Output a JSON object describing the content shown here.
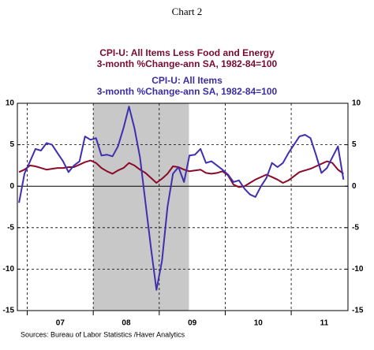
{
  "chart_data": {
    "type": "line",
    "title": "Chart 2",
    "legend_lines": [
      {
        "text": "CPI-U: All Items Less Food and Energy",
        "color": "#7a0a2e"
      },
      {
        "text": "3-month %Change-ann    SA, 1982-84=100",
        "color": "#7a0a2e"
      },
      {
        "text": "CPI-U: All Items",
        "color": "#3a2ea0"
      },
      {
        "text": "3-month %Change-ann    SA, 1982-84=100",
        "color": "#3a2ea0"
      }
    ],
    "source": "Sources:  Bureau of Labor Statistics /Haver Analytics",
    "x": [
      2006.875,
      2006.958,
      2007.042,
      2007.125,
      2007.208,
      2007.292,
      2007.375,
      2007.458,
      2007.542,
      2007.625,
      2007.708,
      2007.792,
      2007.875,
      2007.958,
      2008.042,
      2008.125,
      2008.208,
      2008.292,
      2008.375,
      2008.458,
      2008.542,
      2008.625,
      2008.708,
      2008.792,
      2008.875,
      2008.958,
      2009.042,
      2009.125,
      2009.208,
      2009.292,
      2009.375,
      2009.458,
      2009.542,
      2009.625,
      2009.708,
      2009.792,
      2009.875,
      2009.958,
      2010.042,
      2010.125,
      2010.208,
      2010.292,
      2010.375,
      2010.458,
      2010.542,
      2010.625,
      2010.708,
      2010.792,
      2010.875,
      2010.958,
      2011.042,
      2011.125,
      2011.208,
      2011.292,
      2011.375,
      2011.458,
      2011.542,
      2011.625,
      2011.708,
      2011.792
    ],
    "series": [
      {
        "name": "CPI-U: All Items Less Food and Energy",
        "color": "#8b0a2a",
        "values": [
          1.7,
          2.0,
          2.5,
          2.4,
          2.2,
          2.0,
          2.1,
          2.2,
          2.2,
          2.3,
          2.3,
          2.6,
          2.9,
          3.1,
          2.8,
          2.2,
          1.8,
          1.5,
          1.9,
          2.2,
          2.8,
          2.5,
          2.0,
          1.6,
          1.0,
          0.4,
          0.9,
          1.5,
          2.4,
          2.3,
          2.0,
          1.8,
          1.9,
          2.0,
          1.6,
          1.5,
          1.6,
          1.8,
          1.3,
          0.2,
          -0.1,
          0.0,
          0.4,
          0.8,
          1.1,
          1.4,
          1.1,
          0.8,
          0.4,
          0.7,
          1.2,
          1.7,
          1.9,
          2.1,
          2.4,
          2.7,
          3.0,
          2.8,
          2.0,
          1.5
        ]
      },
      {
        "name": "CPI-U: All Items",
        "color": "#3f2fb0",
        "values": [
          -2.0,
          1.5,
          3.0,
          4.5,
          4.3,
          5.2,
          5.0,
          4.0,
          3.0,
          1.7,
          2.5,
          3.0,
          6.0,
          5.6,
          5.8,
          3.7,
          3.8,
          3.6,
          4.8,
          7.0,
          9.6,
          7.0,
          3.5,
          -2.0,
          -7.5,
          -12.5,
          -9.0,
          -2.5,
          1.5,
          2.3,
          0.5,
          3.7,
          3.8,
          4.5,
          2.8,
          3.0,
          2.5,
          2.0,
          1.4,
          0.5,
          0.7,
          -0.3,
          -1.0,
          -1.3,
          0.0,
          1.0,
          2.8,
          2.3,
          2.8,
          4.0,
          5.0,
          6.0,
          6.2,
          5.8,
          3.8,
          1.6,
          2.2,
          3.5,
          4.8,
          0.8
        ]
      }
    ],
    "xlim": [
      2006.85,
      2011.86
    ],
    "xticks": [
      {
        "value": 2007.5,
        "label": "07"
      },
      {
        "value": 2008.5,
        "label": "08"
      },
      {
        "value": 2009.5,
        "label": "09"
      },
      {
        "value": 2010.5,
        "label": "10"
      },
      {
        "value": 2011.5,
        "label": "11"
      }
    ],
    "x_gridlines": [
      2007,
      2008,
      2009,
      2010,
      2011
    ],
    "shaded_region": [
      2008.0,
      2009.45
    ],
    "ylim": [
      -15,
      10
    ],
    "yticks": [
      -15,
      -10,
      -5,
      0,
      5,
      10
    ],
    "y2lim": [
      -15,
      10
    ],
    "y2ticks": [
      -15,
      -10,
      -5,
      0,
      5,
      10
    ],
    "grid": true
  }
}
